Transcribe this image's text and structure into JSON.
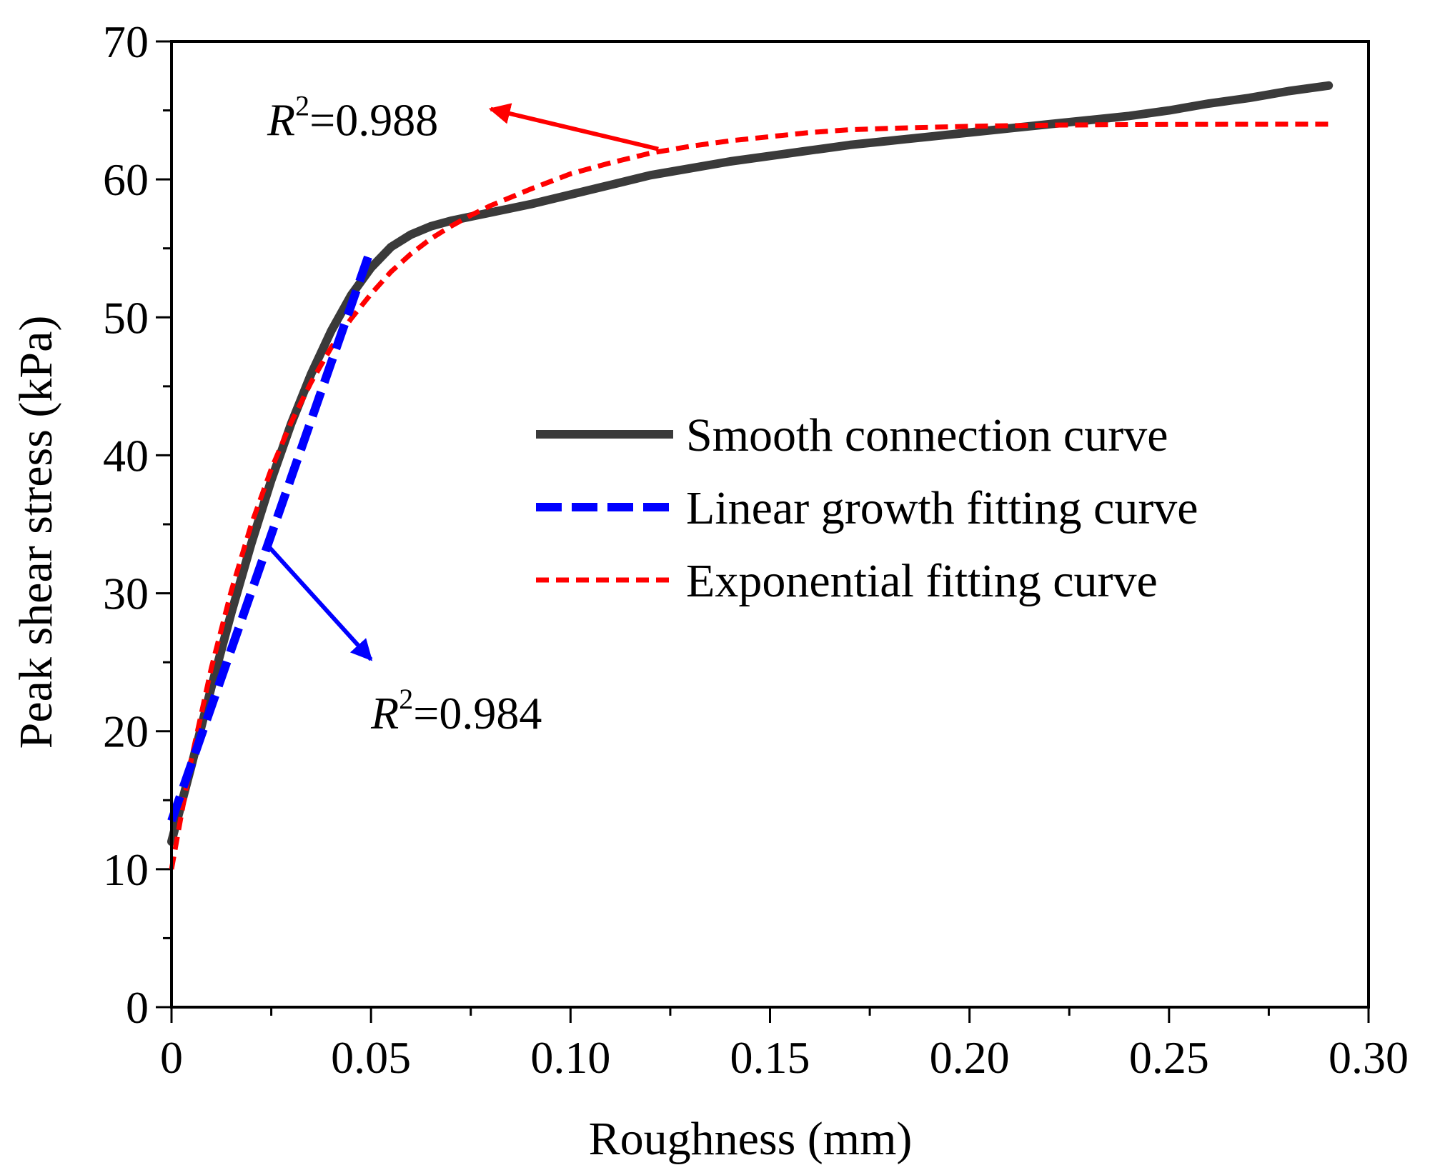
{
  "chart_data": {
    "type": "line",
    "xlabel": "Roughness (mm)",
    "ylabel": "Peak shear stress (kPa)",
    "xlim": [
      0,
      0.3
    ],
    "ylim": [
      0,
      70
    ],
    "x_ticks": [
      0,
      0.05,
      0.1,
      0.15,
      0.2,
      0.25,
      0.3
    ],
    "x_tick_labels": [
      "0",
      "0.05",
      "0.10",
      "0.15",
      "0.20",
      "0.25",
      "0.30"
    ],
    "y_ticks": [
      0,
      10,
      20,
      30,
      40,
      50,
      60,
      70
    ],
    "y_tick_labels": [
      "0",
      "10",
      "20",
      "30",
      "40",
      "50",
      "60",
      "70"
    ],
    "x_minor_step": 0.025,
    "y_minor_step": 5,
    "grid": false,
    "legend_position": "center-right",
    "series": [
      {
        "name": "Smooth connection curve",
        "color": "#3a3a3a",
        "style": "solid",
        "x": [
          0,
          0.005,
          0.01,
          0.015,
          0.02,
          0.025,
          0.03,
          0.035,
          0.04,
          0.045,
          0.05,
          0.055,
          0.06,
          0.065,
          0.07,
          0.075,
          0.08,
          0.09,
          0.1,
          0.11,
          0.12,
          0.13,
          0.14,
          0.15,
          0.16,
          0.17,
          0.18,
          0.19,
          0.2,
          0.21,
          0.22,
          0.23,
          0.24,
          0.25,
          0.26,
          0.27,
          0.28,
          0.29
        ],
        "y": [
          12.0,
          17.5,
          23.2,
          28.6,
          33.6,
          38.2,
          42.3,
          45.9,
          49.0,
          51.6,
          53.6,
          55.1,
          56.0,
          56.6,
          57.0,
          57.3,
          57.6,
          58.2,
          58.9,
          59.6,
          60.3,
          60.8,
          61.3,
          61.7,
          62.1,
          62.5,
          62.8,
          63.1,
          63.4,
          63.7,
          64.0,
          64.3,
          64.6,
          65.0,
          65.5,
          65.9,
          66.4,
          66.8
        ]
      },
      {
        "name": "Linear growth fitting curve",
        "color": "#0000ff",
        "style": "dashed",
        "x": [
          0,
          0.05
        ],
        "y": [
          13.5,
          55.0
        ]
      },
      {
        "name": "Exponential fitting curve",
        "color": "#ff0000",
        "style": "dotted",
        "x": [
          0,
          0.005,
          0.01,
          0.015,
          0.02,
          0.025,
          0.03,
          0.035,
          0.04,
          0.045,
          0.05,
          0.055,
          0.06,
          0.065,
          0.07,
          0.075,
          0.08,
          0.09,
          0.1,
          0.11,
          0.12,
          0.13,
          0.14,
          0.15,
          0.16,
          0.17,
          0.18,
          0.2,
          0.22,
          0.24,
          0.26,
          0.28,
          0.29
        ],
        "y": [
          10.0,
          18.0,
          24.6,
          30.2,
          35.0,
          39.0,
          42.4,
          45.3,
          47.8,
          49.9,
          51.7,
          53.3,
          54.6,
          55.7,
          56.6,
          57.4,
          58.1,
          59.3,
          60.4,
          61.2,
          61.9,
          62.4,
          62.8,
          63.1,
          63.4,
          63.6,
          63.7,
          63.85,
          63.93,
          63.97,
          63.99,
          64.0,
          64.0
        ]
      }
    ],
    "annotations": [
      {
        "prefix": "R",
        "superscript": "2",
        "text": "=0.988",
        "color": "#ff0000",
        "text_at": [
          0.024,
          63.2
        ],
        "arrow_from": [
          0.122,
          62.2
        ],
        "arrow_to": [
          0.08,
          65.1
        ]
      },
      {
        "prefix": "R",
        "superscript": "2",
        "text": "=0.984",
        "color": "#0000ff",
        "text_at": [
          0.05,
          20.2
        ],
        "arrow_from": [
          0.024,
          33.5
        ],
        "arrow_to": [
          0.05,
          25.2
        ]
      }
    ]
  }
}
